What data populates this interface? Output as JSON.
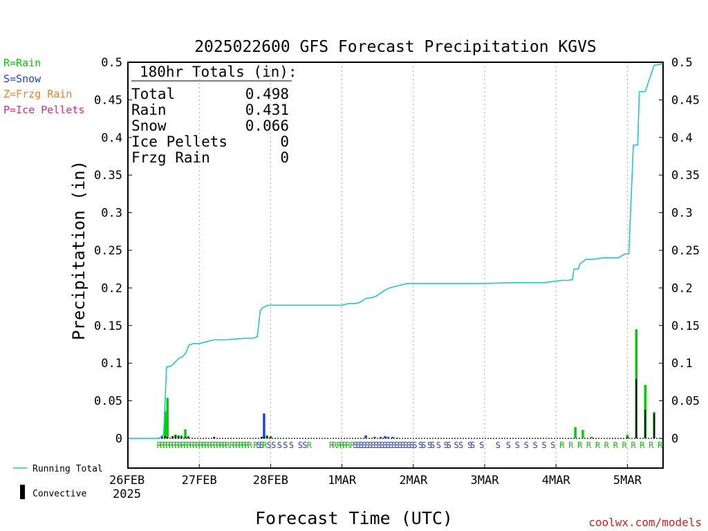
{
  "chart_data": {
    "type": "bar",
    "title": "2025022600 GFS Forecast Precipitation KGVS",
    "xlabel": "Forecast Time (UTC)",
    "ylabel": "Precipitation (in)",
    "ylim": [
      0,
      0.5
    ],
    "xlim_hours": [
      0,
      180
    ],
    "y_ticks": [
      "0",
      "0.05",
      "0.1",
      "0.15",
      "0.2",
      "0.25",
      "0.3",
      "0.35",
      "0.4",
      "0.45",
      "0.5"
    ],
    "y_tick_values": [
      0,
      0.05,
      0.1,
      0.15,
      0.2,
      0.25,
      0.3,
      0.35,
      0.4,
      0.45,
      0.5
    ],
    "x_ticks": [
      {
        "label": "26FEB",
        "sub": "2025",
        "hour": 0
      },
      {
        "label": "27FEB",
        "sub": "",
        "hour": 24
      },
      {
        "label": "28FEB",
        "sub": "",
        "hour": 48
      },
      {
        "label": "1MAR",
        "sub": "",
        "hour": 72
      },
      {
        "label": "2MAR",
        "sub": "",
        "hour": 96
      },
      {
        "label": "3MAR",
        "sub": "",
        "hour": 120
      },
      {
        "label": "4MAR",
        "sub": "",
        "hour": 144
      },
      {
        "label": "5MAR",
        "sub": "",
        "hour": 168
      }
    ],
    "grid": "vertical dotted lines at each day",
    "legend_position": "left",
    "legend": {
      "rain": "R=Rain",
      "snow": "S=Snow",
      "frzg": "Z=Frzg Rain",
      "ice": "P=Ice Pellets"
    },
    "series_labels": {
      "running_total": "Running Total",
      "convective": "Convective"
    },
    "totals": {
      "heading": "180hr Totals (in):",
      "rows": [
        {
          "label": "Total",
          "value": "0.498"
        },
        {
          "label": "Rain",
          "value": "0.431"
        },
        {
          "label": "Snow",
          "value": "0.066"
        },
        {
          "label": "Ice Pellets",
          "value": "0"
        },
        {
          "label": "Frzg Rain",
          "value": "0"
        }
      ]
    },
    "running_total": {
      "hours": [
        0,
        10.5,
        12,
        13,
        14.5,
        15.5,
        17,
        18.5,
        19.5,
        20.5,
        22,
        24,
        26,
        29,
        33,
        39,
        42,
        43.5,
        44.5,
        45.5,
        47,
        49,
        52,
        57,
        66,
        72,
        74,
        76,
        77.5,
        78.5,
        80,
        82,
        83.5,
        86,
        88,
        91,
        94,
        96,
        100,
        110,
        120,
        130,
        140,
        144,
        146,
        148,
        149.5,
        150,
        151.5,
        152,
        154,
        156,
        160,
        164.5,
        165,
        167,
        167.5,
        168.5,
        170,
        171,
        171.5,
        172,
        173.5,
        174,
        177,
        180
      ],
      "values": [
        0,
        0,
        0.005,
        0.095,
        0.096,
        0.1,
        0.106,
        0.109,
        0.114,
        0.124,
        0.126,
        0.126,
        0.128,
        0.131,
        0.131,
        0.133,
        0.133,
        0.135,
        0.17,
        0.174,
        0.177,
        0.177,
        0.177,
        0.177,
        0.177,
        0.177,
        0.179,
        0.179,
        0.18,
        0.182,
        0.186,
        0.187,
        0.189,
        0.196,
        0.2,
        0.203,
        0.206,
        0.206,
        0.206,
        0.206,
        0.206,
        0.207,
        0.207,
        0.209,
        0.21,
        0.21,
        0.211,
        0.225,
        0.225,
        0.232,
        0.238,
        0.238,
        0.24,
        0.24,
        0.24,
        0.245,
        0.245,
        0.245,
        0.39,
        0.39,
        0.39,
        0.461,
        0.461,
        0.461,
        0.496,
        0.498
      ]
    },
    "bars": [
      {
        "hour": 10.5,
        "value": 0.001,
        "convective": 0.001,
        "type": "rain"
      },
      {
        "hour": 11.5,
        "value": 0.004,
        "convective": 0.002,
        "type": "rain"
      },
      {
        "hour": 12.5,
        "value": 0.036,
        "convective": 0.003,
        "type": "rain"
      },
      {
        "hour": 13.3,
        "value": 0.054,
        "convective": 0.002,
        "type": "rain"
      },
      {
        "hour": 15.0,
        "value": 0.003,
        "convective": 0.003,
        "type": "rain"
      },
      {
        "hour": 16.0,
        "value": 0.005,
        "convective": 0.004,
        "type": "rain"
      },
      {
        "hour": 17.0,
        "value": 0.004,
        "convective": 0.003,
        "type": "rain"
      },
      {
        "hour": 18.0,
        "value": 0.004,
        "convective": 0.002,
        "type": "rain"
      },
      {
        "hour": 19.3,
        "value": 0.012,
        "convective": 0.002,
        "type": "rain"
      },
      {
        "hour": 20.3,
        "value": 0.003,
        "convective": 0.002,
        "type": "rain"
      },
      {
        "hour": 29.0,
        "value": 0.002,
        "convective": 0.002,
        "type": "rain"
      },
      {
        "hour": 45.0,
        "value": 0.002,
        "convective": 0.002,
        "type": "snow"
      },
      {
        "hour": 45.8,
        "value": 0.033,
        "convective": 0.002,
        "type": "snow"
      },
      {
        "hour": 46.8,
        "value": 0.004,
        "convective": 0.003,
        "type": "rain"
      },
      {
        "hour": 48.0,
        "value": 0.003,
        "convective": 0.002,
        "type": "rain"
      },
      {
        "hour": 80.0,
        "value": 0.004,
        "convective": 0.0,
        "type": "snow"
      },
      {
        "hour": 83.0,
        "value": 0.002,
        "convective": 0.0,
        "type": "snow"
      },
      {
        "hour": 85.0,
        "value": 0.002,
        "convective": 0.0,
        "type": "snow"
      },
      {
        "hour": 86.5,
        "value": 0.003,
        "convective": 0.0,
        "type": "snow"
      },
      {
        "hour": 87.5,
        "value": 0.002,
        "convective": 0.0,
        "type": "snow"
      },
      {
        "hour": 89.0,
        "value": 0.002,
        "convective": 0.0,
        "type": "snow"
      },
      {
        "hour": 90.5,
        "value": 0.001,
        "convective": 0.0,
        "type": "snow"
      },
      {
        "hour": 150.5,
        "value": 0.015,
        "convective": 0.0,
        "type": "rain"
      },
      {
        "hour": 153.0,
        "value": 0.011,
        "convective": 0.0,
        "type": "rain"
      },
      {
        "hour": 156.0,
        "value": 0.002,
        "convective": 0.0,
        "type": "rain"
      },
      {
        "hour": 168.0,
        "value": 0.005,
        "convective": 0.002,
        "type": "rain"
      },
      {
        "hour": 171.0,
        "value": 0.145,
        "convective": 0.079,
        "type": "rain"
      },
      {
        "hour": 174.0,
        "value": 0.071,
        "convective": 0.038,
        "type": "rain"
      },
      {
        "hour": 177.0,
        "value": 0.035,
        "convective": 0.033,
        "type": "rain"
      }
    ],
    "ptype_strip": [
      {
        "hour": 10.5,
        "char": "R",
        "type": "rain"
      },
      {
        "hour": 11.5,
        "char": "R",
        "type": "rain"
      },
      {
        "hour": 12.5,
        "char": "R",
        "type": "rain"
      },
      {
        "hour": 13.5,
        "char": "R",
        "type": "rain"
      },
      {
        "hour": 14.5,
        "char": "R",
        "type": "rain"
      },
      {
        "hour": 15.5,
        "char": "R",
        "type": "rain"
      },
      {
        "hour": 16.5,
        "char": "R",
        "type": "rain"
      },
      {
        "hour": 17.5,
        "char": "R",
        "type": "rain"
      },
      {
        "hour": 18.5,
        "char": "R",
        "type": "rain"
      },
      {
        "hour": 19.5,
        "char": "R",
        "type": "rain"
      },
      {
        "hour": 20.5,
        "char": "R",
        "type": "rain"
      },
      {
        "hour": 21.5,
        "char": "R",
        "type": "rain"
      },
      {
        "hour": 22.5,
        "char": "R",
        "type": "rain"
      },
      {
        "hour": 23.5,
        "char": "R",
        "type": "rain"
      },
      {
        "hour": 24.5,
        "char": "R",
        "type": "rain"
      },
      {
        "hour": 25.5,
        "char": "R",
        "type": "rain"
      },
      {
        "hour": 26.5,
        "char": "R",
        "type": "rain"
      },
      {
        "hour": 27.5,
        "char": "R",
        "type": "rain"
      },
      {
        "hour": 28.5,
        "char": "R",
        "type": "rain"
      },
      {
        "hour": 29.5,
        "char": "R",
        "type": "rain"
      },
      {
        "hour": 30.5,
        "char": "R",
        "type": "rain"
      },
      {
        "hour": 31.5,
        "char": "R",
        "type": "rain"
      },
      {
        "hour": 32.5,
        "char": "R",
        "type": "rain"
      },
      {
        "hour": 33.5,
        "char": "R",
        "type": "rain"
      },
      {
        "hour": 35,
        "char": "R",
        "type": "rain"
      },
      {
        "hour": 36,
        "char": "R",
        "type": "rain"
      },
      {
        "hour": 37,
        "char": "R",
        "type": "rain"
      },
      {
        "hour": 38,
        "char": "R",
        "type": "rain"
      },
      {
        "hour": 39,
        "char": "R",
        "type": "rain"
      },
      {
        "hour": 40,
        "char": "R",
        "type": "rain"
      },
      {
        "hour": 41,
        "char": "R",
        "type": "rain"
      },
      {
        "hour": 43,
        "char": "R",
        "type": "rain"
      },
      {
        "hour": 44,
        "char": "S",
        "type": "snow"
      },
      {
        "hour": 45,
        "char": "S",
        "type": "snow"
      },
      {
        "hour": 46,
        "char": "R",
        "type": "rain"
      },
      {
        "hour": 47.5,
        "char": "S",
        "type": "snow"
      },
      {
        "hour": 49,
        "char": "S",
        "type": "snow"
      },
      {
        "hour": 51,
        "char": "S",
        "type": "snow"
      },
      {
        "hour": 53,
        "char": "S",
        "type": "snow"
      },
      {
        "hour": 55,
        "char": "S",
        "type": "snow"
      },
      {
        "hour": 58,
        "char": "S",
        "type": "snow"
      },
      {
        "hour": 59.5,
        "char": "S",
        "type": "snow"
      },
      {
        "hour": 61,
        "char": "R",
        "type": "rain"
      },
      {
        "hour": 68.5,
        "char": "R",
        "type": "rain"
      },
      {
        "hour": 69.5,
        "char": "R",
        "type": "rain"
      },
      {
        "hour": 71,
        "char": "R",
        "type": "rain"
      },
      {
        "hour": 72,
        "char": "R",
        "type": "rain"
      },
      {
        "hour": 73,
        "char": "R",
        "type": "rain"
      },
      {
        "hour": 74,
        "char": "R",
        "type": "rain"
      },
      {
        "hour": 75.5,
        "char": "R",
        "type": "rain"
      },
      {
        "hour": 76.5,
        "char": "S",
        "type": "snow"
      },
      {
        "hour": 77.5,
        "char": "S",
        "type": "snow"
      },
      {
        "hour": 78.5,
        "char": "S",
        "type": "snow"
      },
      {
        "hour": 79.5,
        "char": "S",
        "type": "snow"
      },
      {
        "hour": 80.5,
        "char": "S",
        "type": "snow"
      },
      {
        "hour": 81.5,
        "char": "S",
        "type": "snow"
      },
      {
        "hour": 82.5,
        "char": "S",
        "type": "snow"
      },
      {
        "hour": 83.5,
        "char": "S",
        "type": "snow"
      },
      {
        "hour": 84.5,
        "char": "S",
        "type": "snow"
      },
      {
        "hour": 85.5,
        "char": "S",
        "type": "snow"
      },
      {
        "hour": 86.5,
        "char": "S",
        "type": "snow"
      },
      {
        "hour": 87.5,
        "char": "S",
        "type": "snow"
      },
      {
        "hour": 88.5,
        "char": "S",
        "type": "snow"
      },
      {
        "hour": 89.5,
        "char": "S",
        "type": "snow"
      },
      {
        "hour": 90.5,
        "char": "S",
        "type": "snow"
      },
      {
        "hour": 91.5,
        "char": "S",
        "type": "snow"
      },
      {
        "hour": 92.5,
        "char": "S",
        "type": "snow"
      },
      {
        "hour": 93.5,
        "char": "S",
        "type": "snow"
      },
      {
        "hour": 94.5,
        "char": "S",
        "type": "snow"
      },
      {
        "hour": 95.5,
        "char": "S",
        "type": "snow"
      },
      {
        "hour": 96.5,
        "char": "S",
        "type": "snow"
      },
      {
        "hour": 98.5,
        "char": "S",
        "type": "snow"
      },
      {
        "hour": 99.5,
        "char": "S",
        "type": "snow"
      },
      {
        "hour": 101.5,
        "char": "S",
        "type": "snow"
      },
      {
        "hour": 102.5,
        "char": "S",
        "type": "snow"
      },
      {
        "hour": 104.5,
        "char": "S",
        "type": "snow"
      },
      {
        "hour": 107,
        "char": "S",
        "type": "snow"
      },
      {
        "hour": 108,
        "char": "S",
        "type": "snow"
      },
      {
        "hour": 110.5,
        "char": "S",
        "type": "snow"
      },
      {
        "hour": 112,
        "char": "S",
        "type": "snow"
      },
      {
        "hour": 115,
        "char": "S",
        "type": "snow"
      },
      {
        "hour": 116,
        "char": "S",
        "type": "snow"
      },
      {
        "hour": 119,
        "char": "S",
        "type": "snow"
      },
      {
        "hour": 124.5,
        "char": "S",
        "type": "snow"
      },
      {
        "hour": 128,
        "char": "S",
        "type": "snow"
      },
      {
        "hour": 131,
        "char": "S",
        "type": "snow"
      },
      {
        "hour": 134,
        "char": "S",
        "type": "snow"
      },
      {
        "hour": 137,
        "char": "S",
        "type": "snow"
      },
      {
        "hour": 140,
        "char": "S",
        "type": "snow"
      },
      {
        "hour": 143,
        "char": "S",
        "type": "snow"
      },
      {
        "hour": 146,
        "char": "R",
        "type": "rain"
      },
      {
        "hour": 149,
        "char": "R",
        "type": "rain"
      },
      {
        "hour": 152,
        "char": "R",
        "type": "rain"
      },
      {
        "hour": 155,
        "char": "R",
        "type": "rain"
      },
      {
        "hour": 158,
        "char": "R",
        "type": "rain"
      },
      {
        "hour": 161,
        "char": "R",
        "type": "rain"
      },
      {
        "hour": 164,
        "char": "R",
        "type": "rain"
      },
      {
        "hour": 167,
        "char": "R",
        "type": "rain"
      },
      {
        "hour": 170,
        "char": "R",
        "type": "rain"
      },
      {
        "hour": 173,
        "char": "R",
        "type": "rain"
      },
      {
        "hour": 176,
        "char": "R",
        "type": "rain"
      },
      {
        "hour": 179,
        "char": "R",
        "type": "rain"
      }
    ],
    "colors": {
      "rain": "#00d000",
      "snow": "#2040e0",
      "frzg": "#f08030",
      "ice": "#e020a0",
      "running_total": "#20c8c8",
      "convective": "#000000",
      "grid": "#aaaaaa",
      "credit": "#d02020"
    }
  },
  "credit": "coolwx.com/models"
}
